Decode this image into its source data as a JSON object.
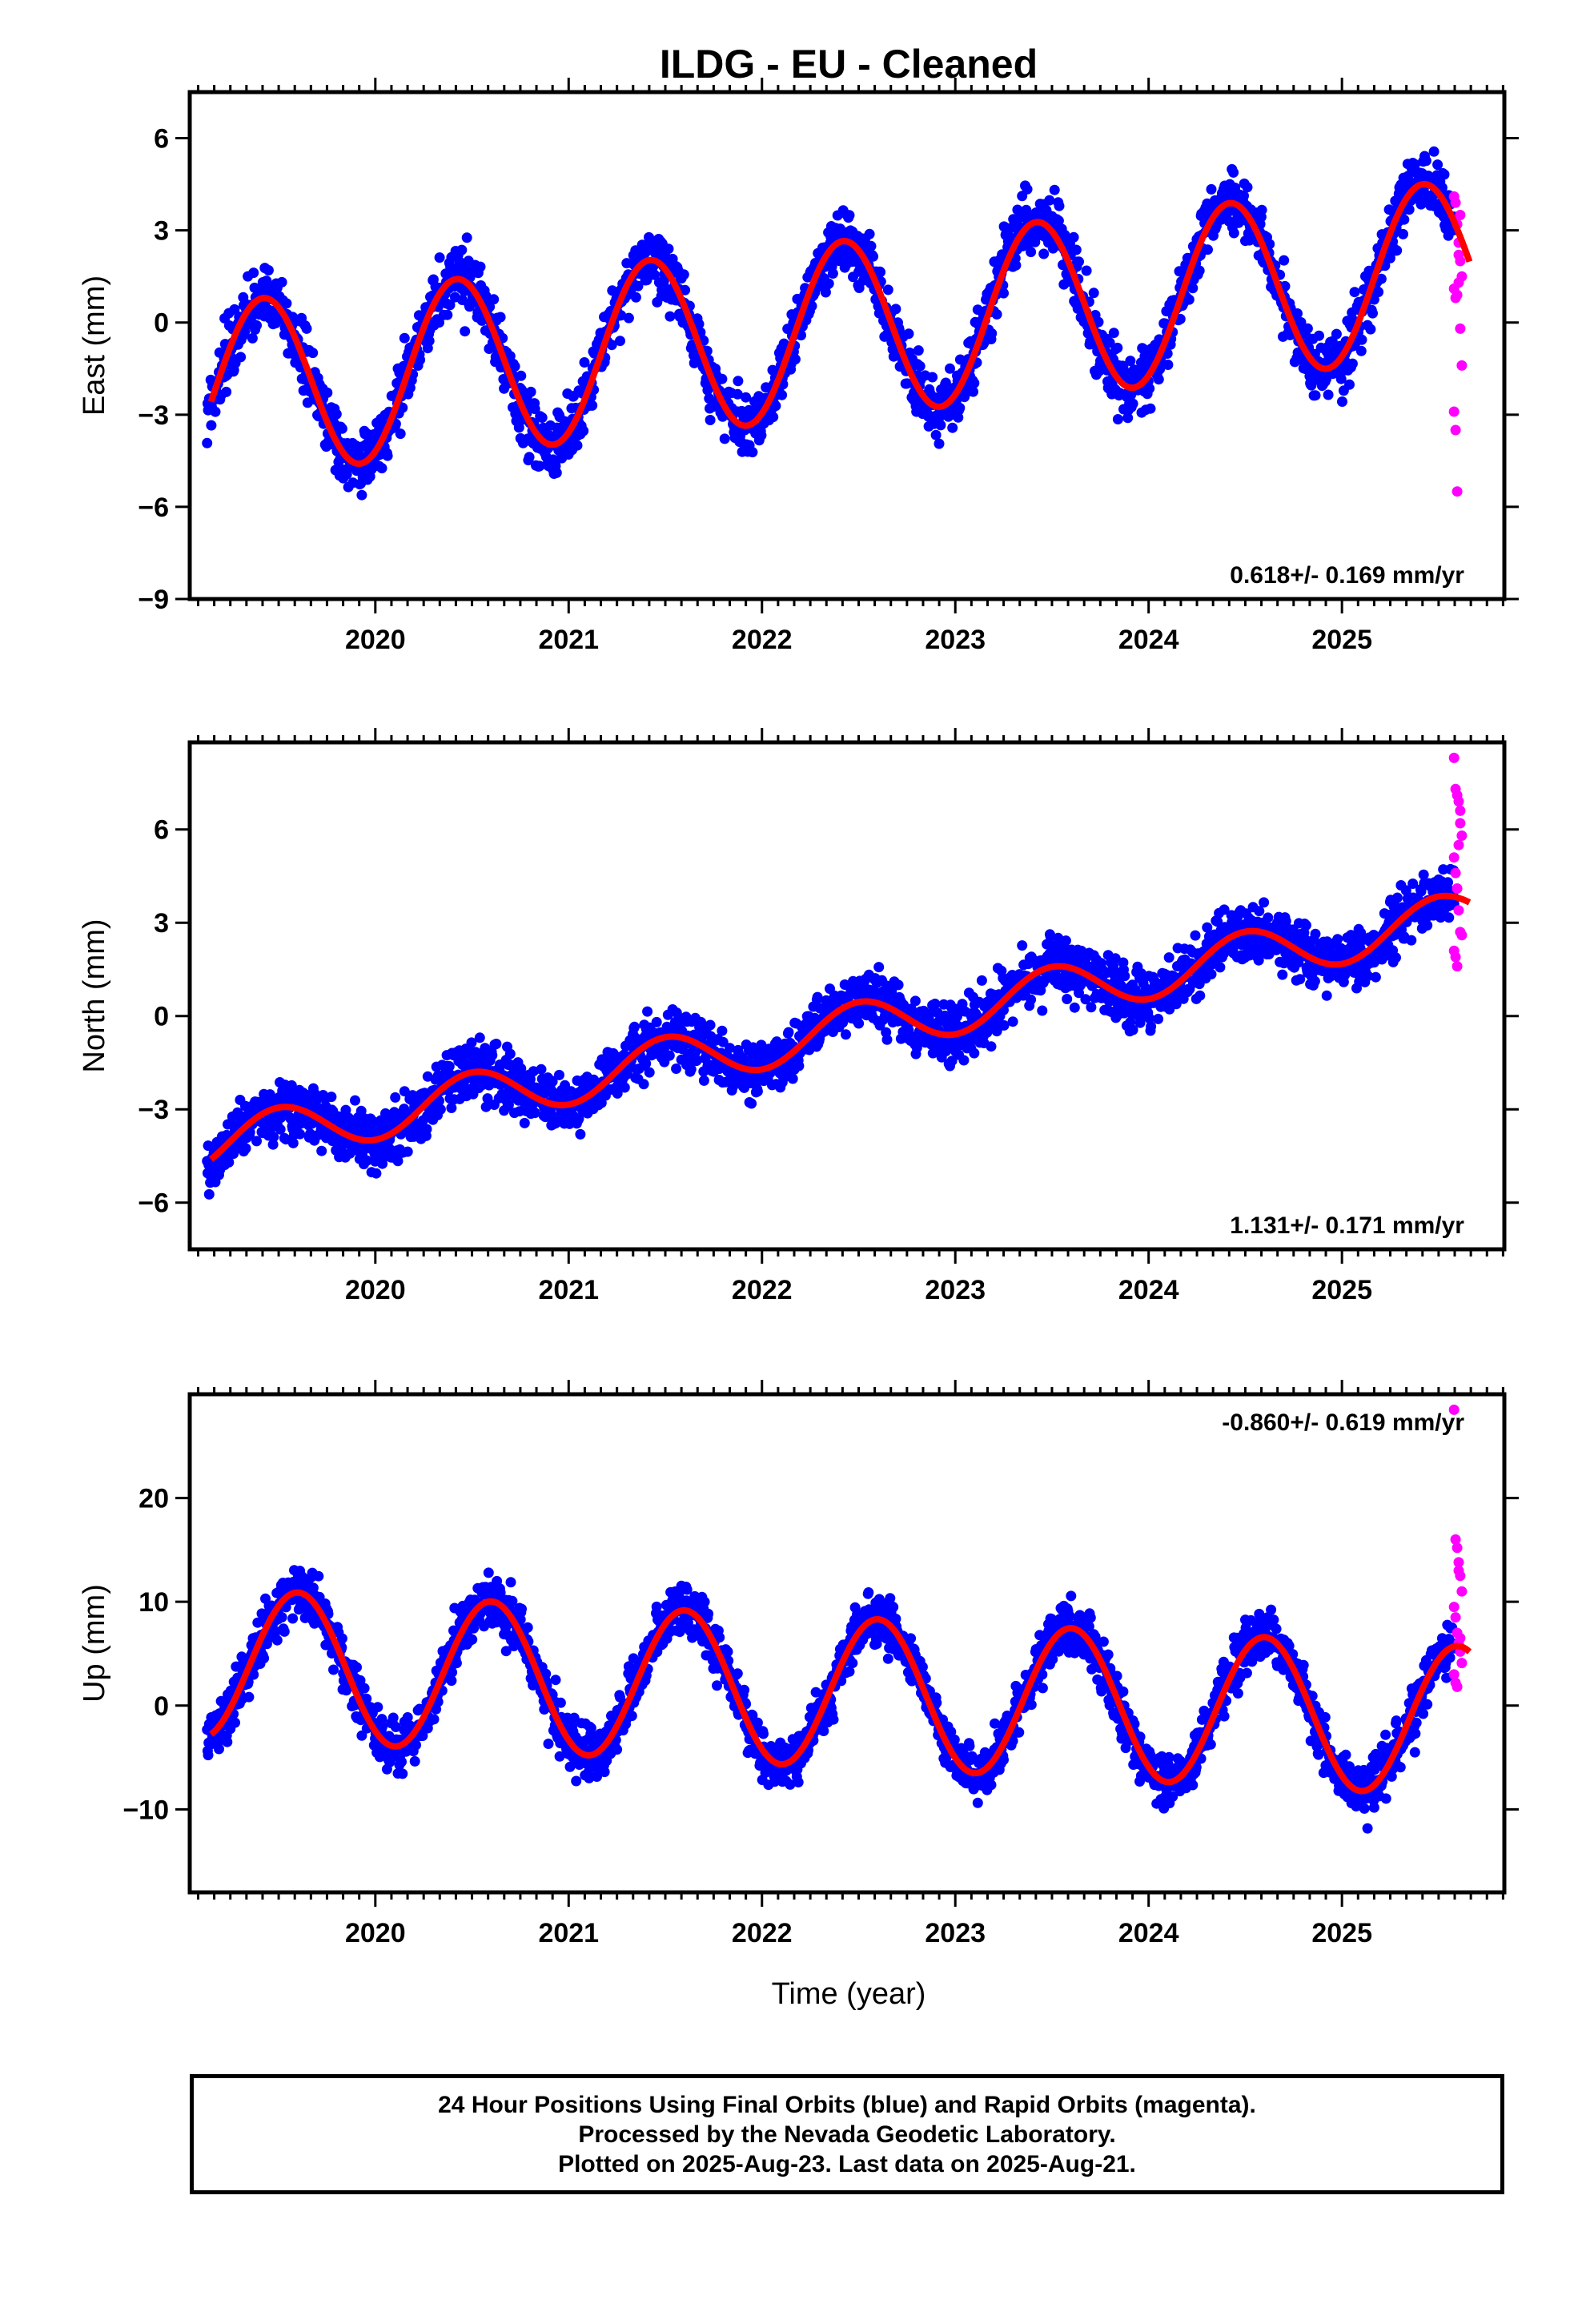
{
  "chart_data": {
    "title": "ILDG  - EU - Cleaned",
    "type": "scatter",
    "xlabel": "Time (year)",
    "xlim": [
      2019.04,
      2025.84
    ],
    "xticks": [
      "2020",
      "2021",
      "2022",
      "2023",
      "2024",
      "2025"
    ],
    "colors": {
      "final": "#0000ff",
      "rapid": "#ff00ff",
      "model": "#ff0000"
    },
    "panels": [
      {
        "ylabel": "East (mm)",
        "ylim": [
          -9,
          7.5
        ],
        "yticks": [
          "6",
          "3",
          "0",
          "−3",
          "−6",
          "−9"
        ],
        "rate": "0.618+/- 0.169 mm/yr",
        "rate_position": "bottom-right",
        "trend": {
          "at": 2022.5,
          "rate": 0.618,
          "offset": -0.15
        },
        "seasonal": {
          "amplitude": 2.85,
          "peak": 2019.42
        },
        "scatter": 1.15,
        "rapid": {
          "x_start": 2025.58,
          "y": [
            4.1,
            3.9,
            3.2,
            2.6,
            2.0,
            1.5,
            1.1,
            0.8,
            0.9,
            1.3,
            -0.2,
            -1.4,
            -2.9,
            -3.5,
            -5.5,
            2.2,
            3.5
          ]
        }
      },
      {
        "ylabel": "North (mm)",
        "ylim": [
          -7.5,
          8.8
        ],
        "yticks": [
          "6",
          "3",
          "0",
          "−3",
          "−6"
        ],
        "rate": "1.131+/- 0.171 mm/yr",
        "rate_position": "bottom-right",
        "trend": {
          "at": 2022.5,
          "rate": 1.131,
          "offset": -0.35
        },
        "seasonal": {
          "amplitude": 0.8,
          "peak": 2019.5
        },
        "scatter": 1.0,
        "rapid": {
          "x_start": 2025.58,
          "y": [
            8.3,
            7.3,
            7.1,
            6.9,
            6.2,
            5.8,
            5.1,
            4.6,
            4.1,
            3.4,
            2.7,
            2.6,
            2.1,
            1.9,
            1.6,
            5.5,
            6.6
          ]
        }
      },
      {
        "ylabel": "Up (mm)",
        "ylim": [
          -18,
          30
        ],
        "yticks": [
          "20",
          "10",
          "0",
          "−10"
        ],
        "rate": "-0.860+/- 0.619 mm/yr",
        "rate_position": "top-right",
        "trend": {
          "at": 2022.5,
          "rate": -0.86,
          "offset": 1.2
        },
        "seasonal": {
          "amplitude": 7.2,
          "peak": 2019.6
        },
        "scatter": 2.9,
        "rapid": {
          "x_start": 2025.58,
          "y": [
            28.5,
            16.0,
            15.2,
            13.0,
            12.5,
            11.0,
            9.5,
            8.5,
            7.0,
            6.0,
            5.2,
            4.1,
            3.0,
            2.2,
            1.8,
            13.8,
            6.5
          ]
        }
      }
    ],
    "series_count": 2420
  },
  "footer": {
    "line1": "24 Hour Positions Using Final Orbits (blue) and Rapid Orbits (magenta).",
    "line2": "Processed by the Nevada Geodetic Laboratory.",
    "line3": "Plotted on 2025-Aug-23. Last data on 2025-Aug-21."
  }
}
